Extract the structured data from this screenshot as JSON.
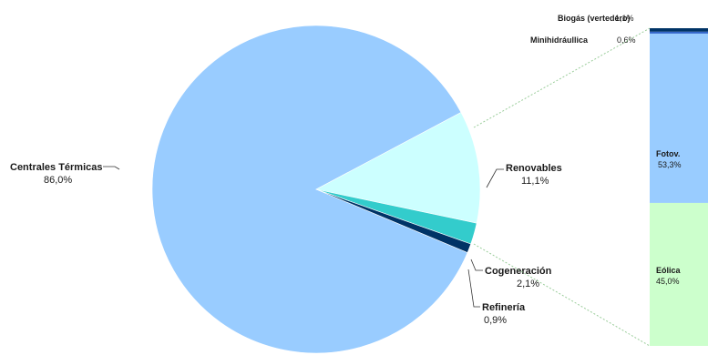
{
  "chart_data": [
    {
      "type": "pie",
      "slices": [
        {
          "name": "Centrales Térmicas",
          "label": "86,0%",
          "value": 86.0,
          "color": "#99ccff"
        },
        {
          "name": "Renovables",
          "label": "11,1%",
          "value": 11.1,
          "color": "#ccffff"
        },
        {
          "name": "Cogeneración",
          "label": "2,1%",
          "value": 2.1,
          "color": "#33cccc"
        },
        {
          "name": "Refinería",
          "label": "0,9%",
          "value": 0.9,
          "color": "#003366"
        }
      ]
    },
    {
      "type": "bar",
      "stacked": true,
      "description_of": "Renovables",
      "segments": [
        {
          "name": "Biogás (vertedero)",
          "label": "1,1%",
          "value": 1.1,
          "color": "#003366"
        },
        {
          "name": "Minihidráullica",
          "label": "0,6%",
          "value": 0.6,
          "color": "#3366cc"
        },
        {
          "name": "Fotov.",
          "label": "53,3%",
          "value": 53.3,
          "color": "#99ccff"
        },
        {
          "name": "Eólica",
          "label": "45,0%",
          "value": 45.0,
          "color": "#ccffcc"
        }
      ]
    }
  ]
}
